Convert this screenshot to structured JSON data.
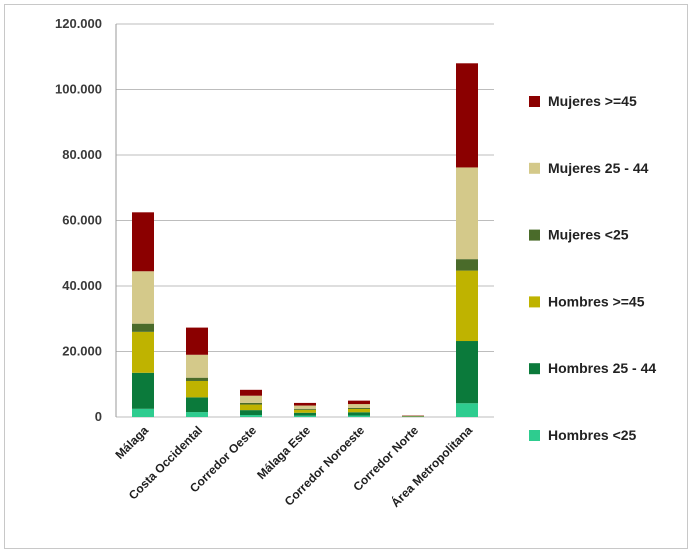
{
  "chart_data": {
    "type": "bar",
    "stacked": true,
    "categories": [
      "Málaga",
      "Costa Occidental",
      "Corredor Oeste",
      "Málaga Este",
      "Corredor Noroeste",
      "Corredor Norte",
      "Área Metropolitana"
    ],
    "series": [
      {
        "name": "Hombres <25",
        "color": "#2ecc8f",
        "values": [
          2500,
          1500,
          600,
          400,
          450,
          50,
          4200
        ]
      },
      {
        "name": "Hombres 25 - 44",
        "color": "#0b7a3b",
        "values": [
          11000,
          4500,
          1500,
          900,
          1000,
          100,
          19000
        ]
      },
      {
        "name": "Hombres >=45",
        "color": "#bfb300",
        "values": [
          12500,
          5000,
          1700,
          900,
          1000,
          100,
          21500
        ]
      },
      {
        "name": "Mujeres <25",
        "color": "#4a6b2a",
        "values": [
          2500,
          1000,
          500,
          300,
          300,
          50,
          3500
        ]
      },
      {
        "name": "Mujeres 25 - 44",
        "color": "#d4c98a",
        "values": [
          16000,
          7000,
          2200,
          1000,
          1200,
          100,
          28000
        ]
      },
      {
        "name": "Mujeres >=45",
        "color": "#8b0000",
        "values": [
          18000,
          8300,
          1800,
          800,
          1050,
          100,
          31800
        ]
      }
    ],
    "yticks": [
      "0",
      "20.000",
      "40.000",
      "60.000",
      "80.000",
      "100.000",
      "120.000"
    ],
    "ylim": [
      0,
      120000
    ],
    "grid": true,
    "legend_position": "right",
    "title": "",
    "xlabel": "",
    "ylabel": ""
  }
}
